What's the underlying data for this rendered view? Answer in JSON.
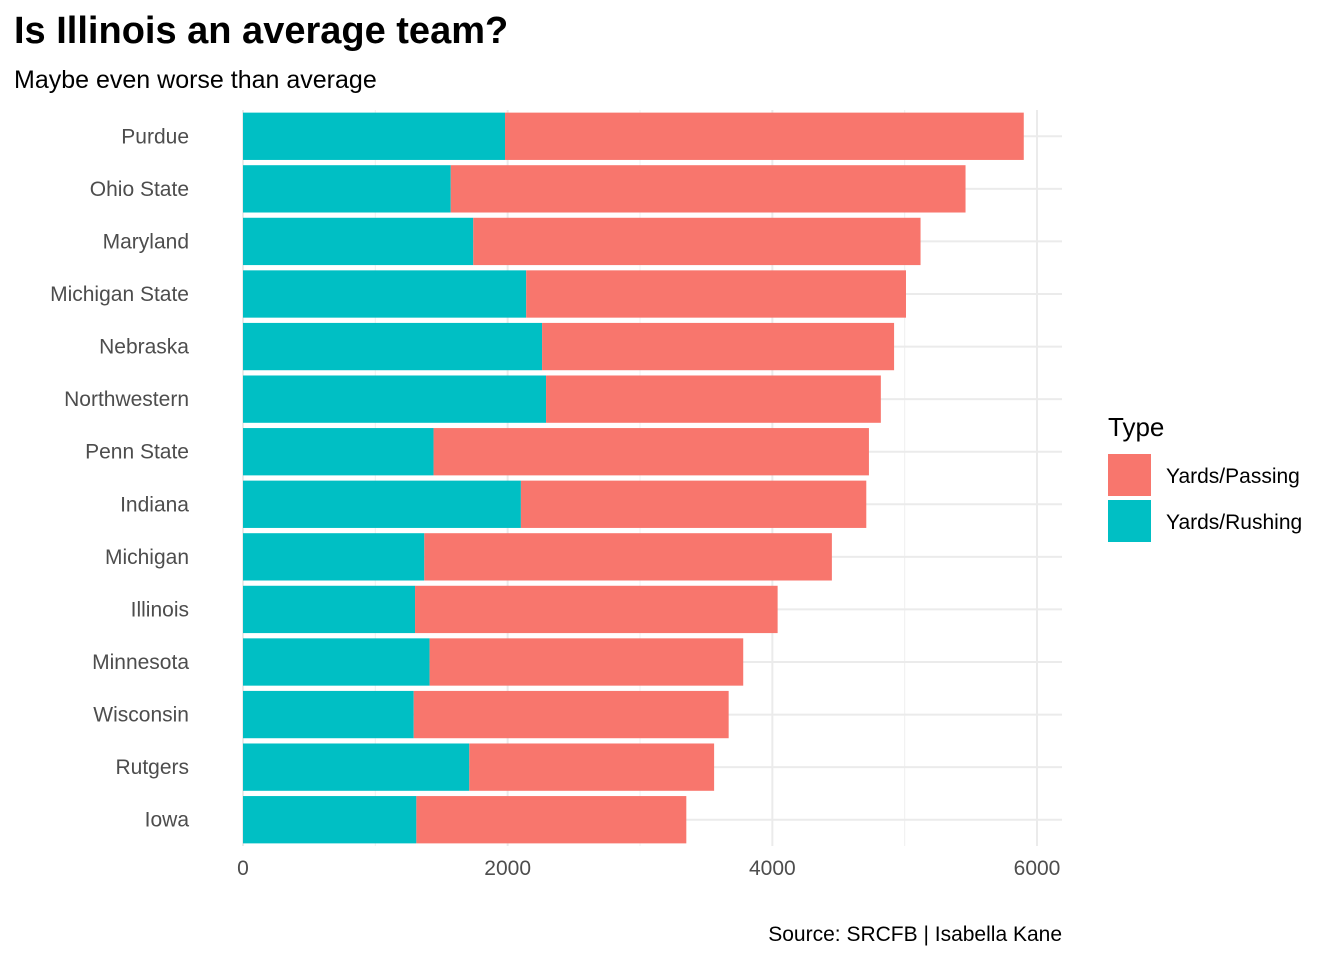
{
  "chart_data": {
    "type": "bar",
    "orientation": "horizontal",
    "stacked": true,
    "title": "Is Illinois an average team?",
    "subtitle": "Maybe even worse than average",
    "caption": "Source: SRCFB | Isabella Kane",
    "xlabel": "",
    "ylabel": "",
    "xlim": [
      0,
      6200
    ],
    "x_ticks": [
      0,
      2000,
      4000,
      6000
    ],
    "grid": true,
    "legend": {
      "title": "Type",
      "placement": "right"
    },
    "categories": [
      "Purdue",
      "Ohio State",
      "Maryland",
      "Michigan State",
      "Nebraska",
      "Northwestern",
      "Penn State",
      "Indiana",
      "Michigan",
      "Illinois",
      "Minnesota",
      "Wisconsin",
      "Rutgers",
      "Iowa"
    ],
    "series": [
      {
        "name": "Yards/Rushing",
        "color": "#00BFC4",
        "values": [
          1980,
          1570,
          1740,
          2140,
          2260,
          2290,
          1440,
          2100,
          1370,
          1300,
          1410,
          1290,
          1710,
          1310
        ]
      },
      {
        "name": "Yards/Passing",
        "color": "#F8766D",
        "values": [
          3920,
          3890,
          3380,
          2870,
          2660,
          2530,
          3290,
          2610,
          3080,
          2740,
          2370,
          2380,
          1850,
          2040
        ]
      }
    ],
    "legend_order": [
      "Yards/Passing",
      "Yards/Rushing"
    ]
  }
}
